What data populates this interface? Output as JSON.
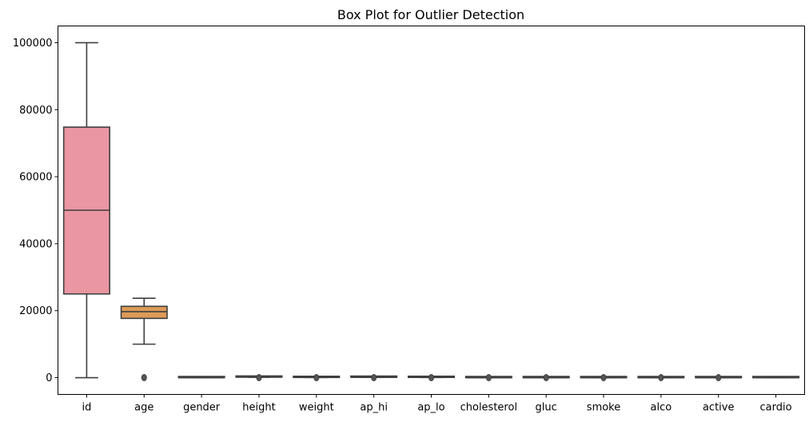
{
  "chart_data": {
    "type": "box",
    "title": "Box Plot for Outlier Detection",
    "xlabel": "",
    "ylabel": "",
    "ylim": [
      -5000,
      105000
    ],
    "yticks": [
      0,
      20000,
      40000,
      60000,
      80000,
      100000
    ],
    "ytick_labels": [
      "0",
      "20000",
      "40000",
      "60000",
      "80000",
      "100000"
    ],
    "grid": false,
    "legend": "none",
    "categories": [
      "id",
      "age",
      "gender",
      "height",
      "weight",
      "ap_hi",
      "ap_lo",
      "cholesterol",
      "gluc",
      "smoke",
      "alco",
      "active",
      "cardio"
    ],
    "colors": [
      "#ea96a3",
      "#dd9b57",
      "#c0a347",
      "#a5ac48",
      "#7cb448",
      "#4bb67a",
      "#4db39f",
      "#4fb0b6",
      "#52acd0",
      "#8ca5ea",
      "#c495ea",
      "#e68be2",
      "#ee8cc2"
    ],
    "edge_color": "#3f3f3f",
    "boxes": [
      {
        "min": 0,
        "q1": 25000,
        "median": 50000,
        "q3": 74800,
        "max": 100000,
        "has_outliers": false
      },
      {
        "min": 10000,
        "q1": 17700,
        "median": 19700,
        "q3": 21300,
        "max": 23700,
        "has_outliers": true
      },
      {
        "min": 1,
        "q1": 1,
        "median": 1,
        "q3": 2,
        "max": 2,
        "has_outliers": false
      },
      {
        "min": 140,
        "q1": 159,
        "median": 165,
        "q3": 170,
        "max": 186,
        "has_outliers": true
      },
      {
        "min": 40,
        "q1": 65,
        "median": 72,
        "q3": 82,
        "max": 107,
        "has_outliers": true
      },
      {
        "min": 90,
        "q1": 120,
        "median": 120,
        "q3": 140,
        "max": 170,
        "has_outliers": true
      },
      {
        "min": 65,
        "q1": 80,
        "median": 80,
        "q3": 90,
        "max": 105,
        "has_outliers": true
      },
      {
        "min": 1,
        "q1": 1,
        "median": 1,
        "q3": 2,
        "max": 3,
        "has_outliers": true
      },
      {
        "min": 1,
        "q1": 1,
        "median": 1,
        "q3": 1,
        "max": 1,
        "has_outliers": true
      },
      {
        "min": 0,
        "q1": 0,
        "median": 0,
        "q3": 0,
        "max": 0,
        "has_outliers": true
      },
      {
        "min": 0,
        "q1": 0,
        "median": 0,
        "q3": 0,
        "max": 0,
        "has_outliers": true
      },
      {
        "min": 1,
        "q1": 1,
        "median": 1,
        "q3": 1,
        "max": 1,
        "has_outliers": true
      },
      {
        "min": 0,
        "q1": 0,
        "median": 0,
        "q3": 1,
        "max": 1,
        "has_outliers": false
      }
    ]
  }
}
